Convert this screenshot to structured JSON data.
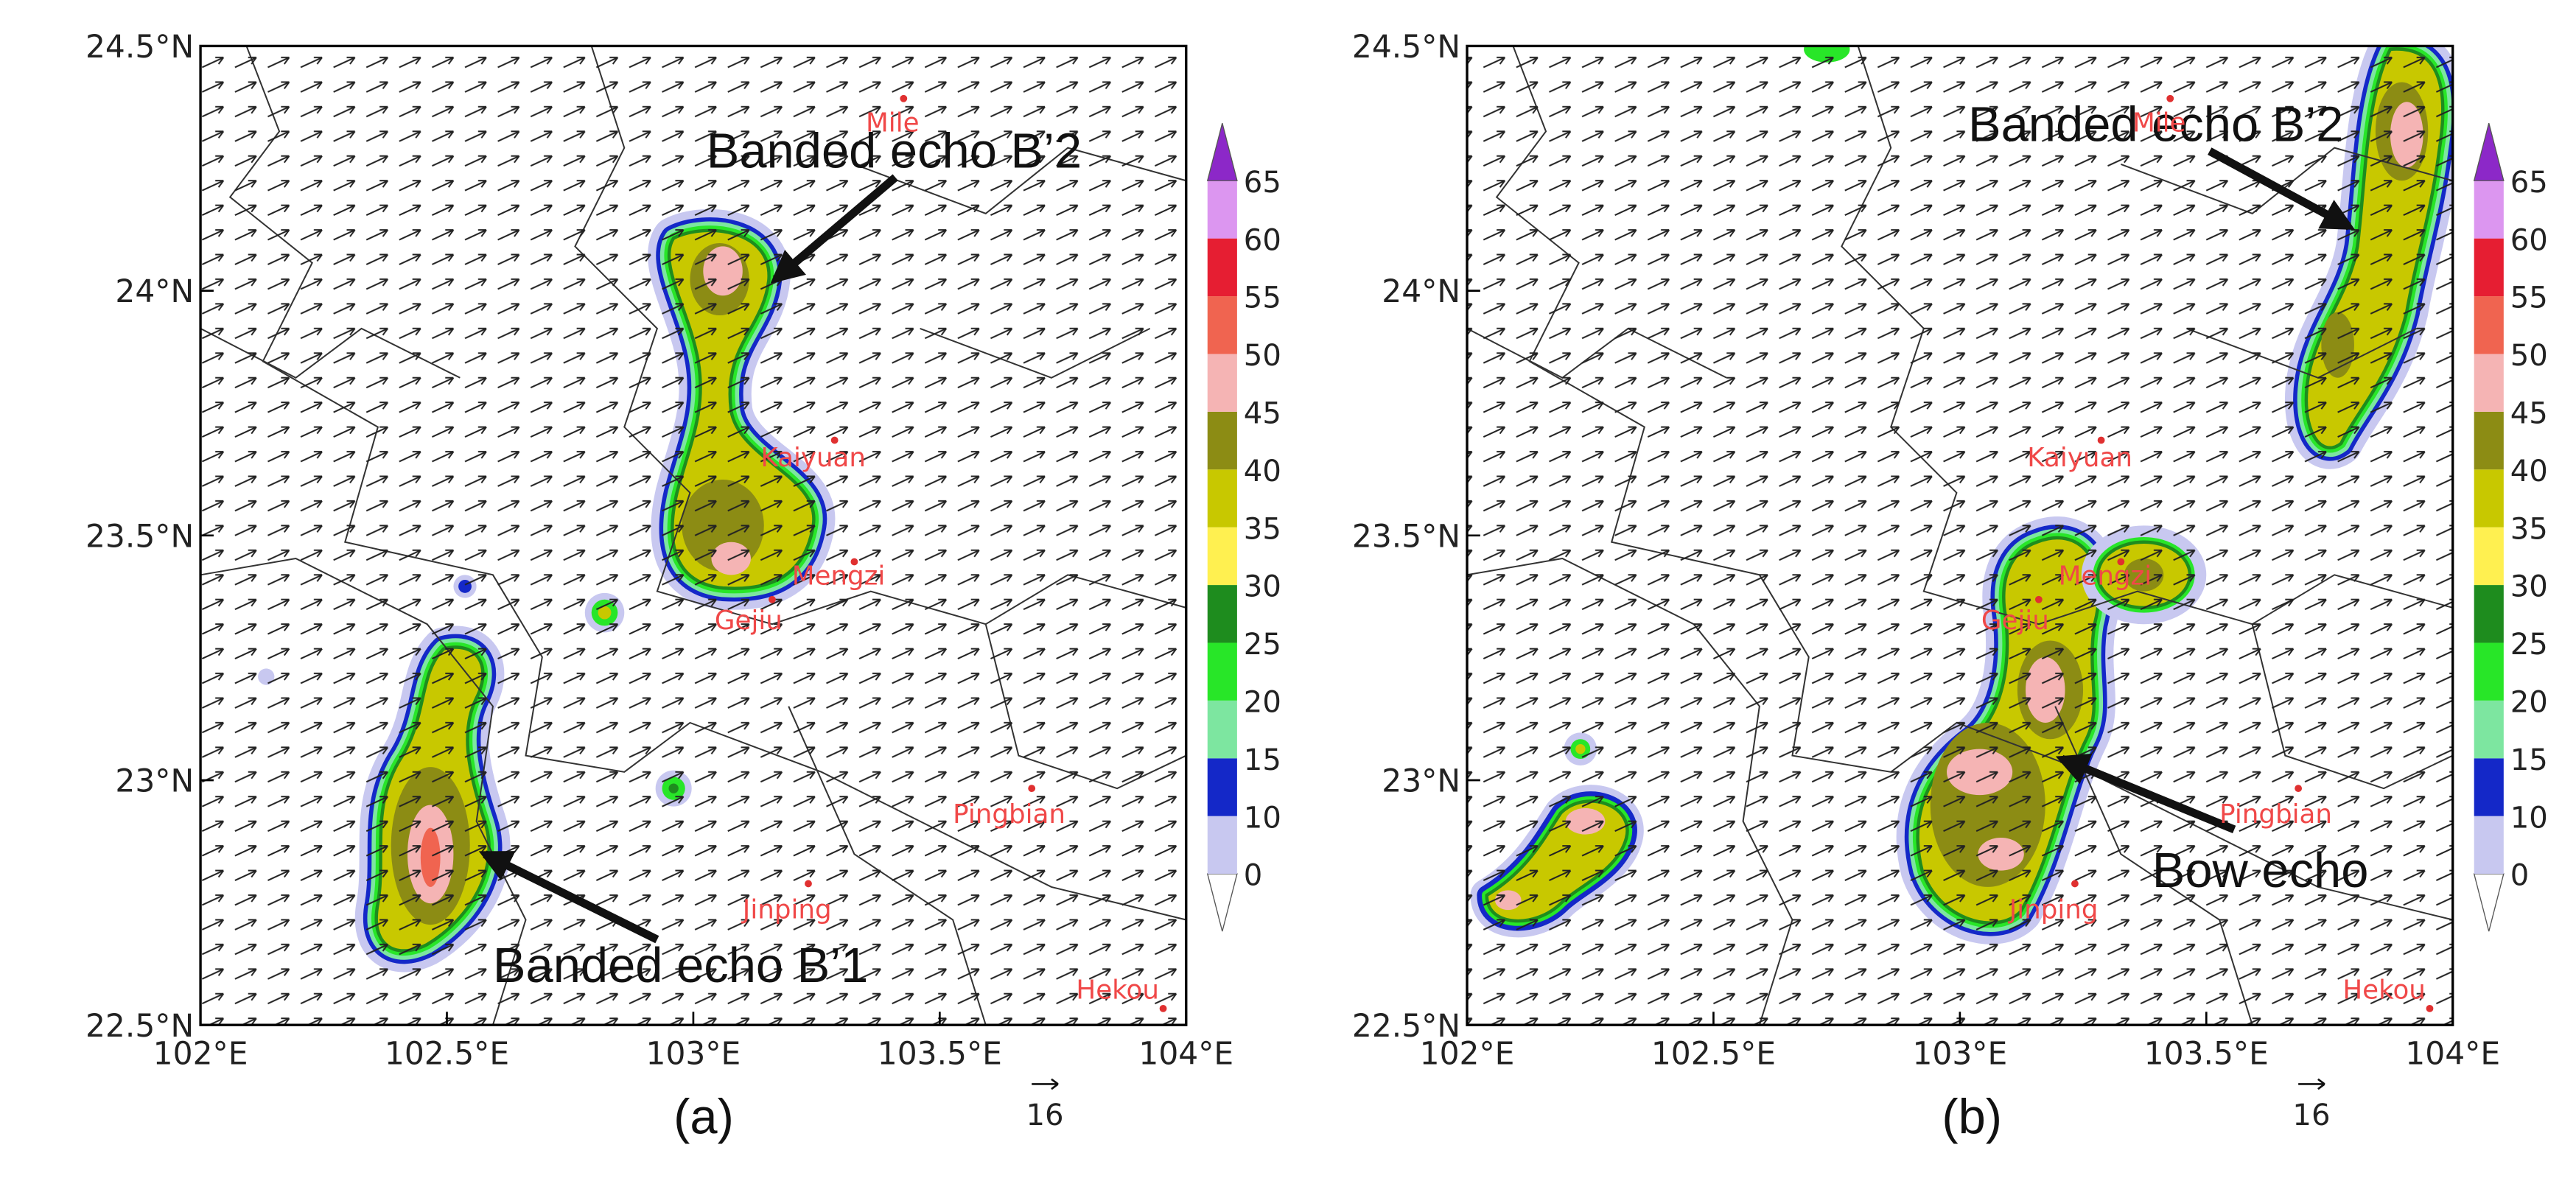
{
  "panels": [
    {
      "label": "(a)",
      "annotations": [
        "Banded echo B’2",
        "Banded echo B’1"
      ],
      "cities": [
        "Mile",
        "Kaiyuan",
        "Mengzi",
        "Gejiu",
        "Pingbian",
        "Jinping",
        "Hekou"
      ]
    },
    {
      "label": "(b)",
      "annotations": [
        "Banded echo B’2",
        "Bow echo"
      ],
      "cities": [
        "Mile",
        "Kaiyuan",
        "Mengzi",
        "Gejiu",
        "Pingbian",
        "Jinping",
        "Hekou"
      ]
    }
  ],
  "xlim": [
    102,
    104
  ],
  "ylim": [
    22.5,
    24.5
  ],
  "xticks": [
    {
      "value": 102,
      "label": "102°E"
    },
    {
      "value": 102.5,
      "label": "102.5°E"
    },
    {
      "value": 103,
      "label": "103°E"
    },
    {
      "value": 103.5,
      "label": "103.5°E"
    },
    {
      "value": 104,
      "label": "104°E"
    }
  ],
  "yticks": [
    {
      "value": 22.5,
      "label": "22.5°N"
    },
    {
      "value": 23,
      "label": "23°N"
    },
    {
      "value": 23.5,
      "label": "23.5°N"
    },
    {
      "value": 24,
      "label": "24°N"
    },
    {
      "value": 24.5,
      "label": "24.5°N"
    }
  ],
  "colorbar": {
    "levels": [
      0,
      10,
      15,
      20,
      25,
      30,
      35,
      40,
      45,
      50,
      55,
      60,
      65
    ],
    "colors": [
      "#ffffff",
      "#c8c8f0",
      "#1428c8",
      "#7de6a0",
      "#28e628",
      "#1e8c1e",
      "#fff050",
      "#c8c800",
      "#8c8c14",
      "#f5b4b4",
      "#f06450",
      "#e61e32",
      "#dc96f0",
      "#8c28c8"
    ]
  },
  "vector_reference": 16
}
